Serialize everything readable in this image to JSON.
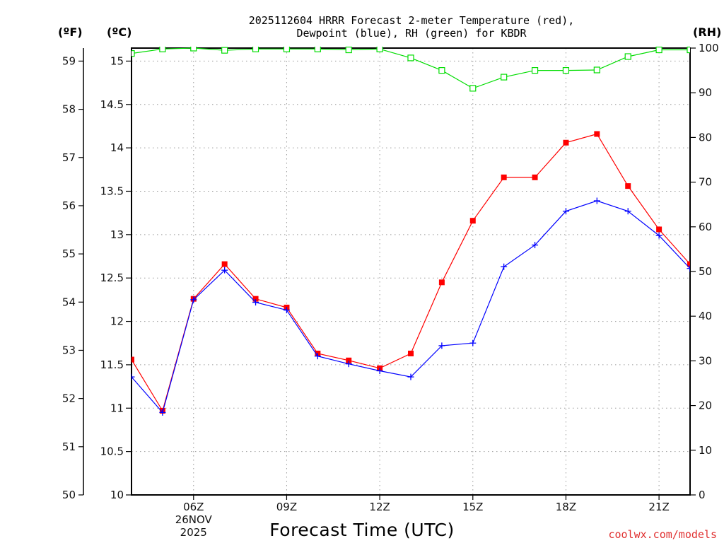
{
  "chart_data": {
    "type": "line",
    "title": [
      "2025112604 HRRR Forecast 2-meter Temperature (red),",
      "Dewpoint (blue), RH (green) for KBDR"
    ],
    "xlabel": "Forecast Time (UTC)",
    "credit": "coolwx.com/models",
    "units": {
      "fahrenheit": "(ºF)",
      "celsius": "(ºC)",
      "rh": "(RH)"
    },
    "x_hours": [
      4,
      5,
      6,
      7,
      8,
      9,
      10,
      11,
      12,
      13,
      14,
      15,
      16,
      17,
      18,
      19,
      20,
      21,
      22
    ],
    "xlim": [
      4,
      22
    ],
    "x_ticks": [
      {
        "hour": 6,
        "label": "06Z",
        "date1": "26NOV",
        "date2": "2025"
      },
      {
        "hour": 9,
        "label": "09Z"
      },
      {
        "hour": 12,
        "label": "12Z"
      },
      {
        "hour": 15,
        "label": "15Z"
      },
      {
        "hour": 18,
        "label": "18Z"
      },
      {
        "hour": 21,
        "label": "21Z"
      }
    ],
    "celsius_axis": {
      "min": 10,
      "max": 15.15,
      "ticks": [
        "10",
        "10.5",
        "11",
        "11.5",
        "12",
        "12.5",
        "13",
        "13.5",
        "14",
        "14.5",
        "15"
      ]
    },
    "fahrenheit_axis": {
      "ticks": [
        "50",
        "51",
        "52",
        "53",
        "54",
        "55",
        "56",
        "57",
        "58",
        "59"
      ]
    },
    "rh_axis": {
      "min": 0,
      "max": 100,
      "ticks": [
        "0",
        "10",
        "20",
        "30",
        "40",
        "50",
        "60",
        "70",
        "80",
        "90",
        "100"
      ]
    },
    "series": [
      {
        "name": "Temperature",
        "color": "#ff0000",
        "marker": "filled-square",
        "axis": "C",
        "values": [
          11.56,
          10.97,
          12.26,
          12.66,
          12.26,
          12.16,
          11.63,
          11.55,
          11.46,
          11.63,
          12.45,
          13.16,
          13.66,
          13.66,
          14.06,
          14.16,
          13.56,
          13.06,
          12.66
        ]
      },
      {
        "name": "Dewpoint",
        "color": "#0000ff",
        "marker": "plus",
        "axis": "C",
        "values": [
          11.36,
          10.95,
          12.25,
          12.59,
          12.22,
          12.13,
          11.6,
          11.51,
          11.43,
          11.36,
          11.72,
          11.75,
          12.63,
          12.88,
          13.27,
          13.39,
          13.27,
          12.99,
          12.61
        ]
      },
      {
        "name": "RH",
        "color": "#00dd00",
        "marker": "open-square",
        "axis": "RH",
        "values": [
          98.8,
          99.8,
          100,
          99.5,
          99.8,
          99.8,
          99.8,
          99.6,
          99.8,
          97.8,
          95,
          91,
          93.5,
          95,
          95,
          95.1,
          98.1,
          99.6,
          99.6
        ]
      }
    ]
  }
}
